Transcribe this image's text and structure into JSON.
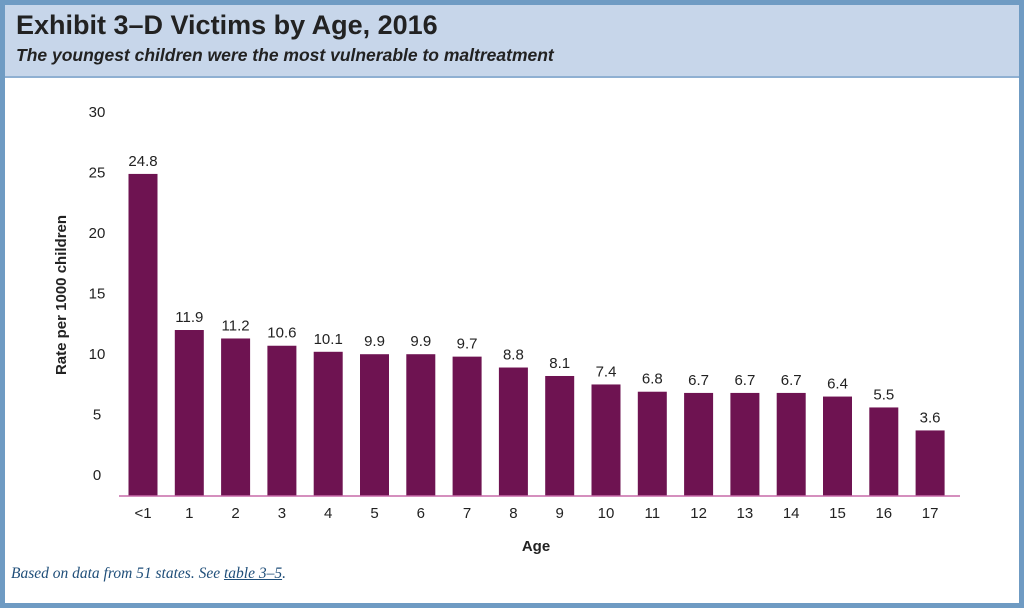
{
  "header": {
    "title": "Exhibit 3–D Victims by Age, 2016",
    "subtitle": "The youngest children were the most vulnerable to maltreatment"
  },
  "footnote": {
    "prefix": "Based on data from 51 states. See ",
    "link_text": "table 3–5",
    "suffix": "."
  },
  "colors": {
    "bar": "#6e1351",
    "axis_line": "#c76aa8",
    "header_bg": "#c7d6ea",
    "frame": "#6f9bc3"
  },
  "chart_data": {
    "type": "bar",
    "categories": [
      "<1",
      "1",
      "2",
      "3",
      "4",
      "5",
      "6",
      "7",
      "8",
      "9",
      "10",
      "11",
      "12",
      "13",
      "14",
      "15",
      "16",
      "17"
    ],
    "values": [
      24.8,
      11.9,
      11.2,
      10.6,
      10.1,
      9.9,
      9.9,
      9.7,
      8.8,
      8.1,
      7.4,
      6.8,
      6.7,
      6.7,
      6.7,
      6.4,
      5.5,
      3.6
    ],
    "title": "Exhibit 3–D Victims by Age, 2016",
    "subtitle": "The youngest children were the most vulnerable to maltreatment",
    "xlabel": "Age",
    "ylabel": "Rate per 1000 children",
    "ylim": [
      0,
      30
    ],
    "yticks": [
      0,
      5,
      10,
      15,
      20,
      25,
      30
    ],
    "grid": false,
    "data_labels": true
  }
}
